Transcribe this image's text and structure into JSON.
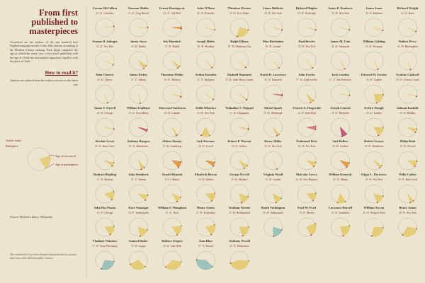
{
  "title": "From first published to masterpieces",
  "intro": "Visualized are the authors of the one hundred best English-language novels of the 20th century according to the Modern Library ranking. Each glyph compares the age at which the writer saw a first novel published with the age at which the masterpiece appeared, together with the place of birth.",
  "how_to_read": {
    "heading": "How to read it?",
    "note": "Authors are ordered from the earliest success to the latest one",
    "legend": [
      "Author name",
      "Age at first novel",
      "Age at masterpiece",
      "Birthplace"
    ]
  },
  "credit": "Source: Modern Library, Wikipedia",
  "footer": "The visualization has been designed and produced as a poster; data were collected from public sources.",
  "authors": [
    {
      "name": "Carson McCullers",
      "first": 23,
      "master": 23,
      "city": "Columbus",
      "color": "#e3c86a"
    },
    {
      "name": "Norman Mailer",
      "first": 25,
      "master": 25,
      "city": "Long Branch",
      "color": "#e3c86a"
    },
    {
      "name": "Ernest Hemingway",
      "first": 24,
      "master": 27,
      "city": "Oak Park",
      "color": "#e0903a"
    },
    {
      "name": "John O'Hara",
      "first": 29,
      "master": 29,
      "city": "Pottsville",
      "color": "#e3c86a"
    },
    {
      "name": "Theodore Dreiser",
      "first": 29,
      "master": 54,
      "city": "Terre Haute",
      "color": "#e3c86a"
    },
    {
      "name": "James Baldwin",
      "first": 29,
      "master": 29,
      "city": "New York",
      "color": "#e3c86a"
    },
    {
      "name": "Richard Hughes",
      "first": 29,
      "master": 29,
      "city": "Weybridge",
      "color": "#e3c86a"
    },
    {
      "name": "James P. Donleavy",
      "first": 29,
      "master": 29,
      "city": "New York",
      "color": "#e3c86a"
    },
    {
      "name": "James Jones",
      "first": 30,
      "master": 30,
      "city": "Robinson",
      "color": "#e3c86a"
    },
    {
      "name": "Richard Wright",
      "first": 32,
      "master": 32,
      "city": "Roxie",
      "color": "#e3c86a"
    },
    {
      "name": "Jerome D. Salinger",
      "first": 32,
      "master": 32,
      "city": "New York",
      "color": "#e3c86a"
    },
    {
      "name": "James Joyce",
      "first": 34,
      "master": 40,
      "city": "Dublin",
      "color": "#e3c86a"
    },
    {
      "name": "Iris Murdoch",
      "first": 35,
      "master": 39,
      "city": "Dublin",
      "color": "#e3c86a"
    },
    {
      "name": "Joseph Heller",
      "first": 38,
      "master": 38,
      "city": "Brooklyn",
      "color": "#e3c86a"
    },
    {
      "name": "Ralph Ellison",
      "first": 38,
      "master": 38,
      "city": "Oklahoma City",
      "color": "#e3c86a"
    },
    {
      "name": "Max Beerbohm",
      "first": 39,
      "master": 39,
      "city": "London",
      "color": "#e3c86a"
    },
    {
      "name": "Paul Bowles",
      "first": 39,
      "master": 39,
      "city": "New York",
      "color": "#e3c86a"
    },
    {
      "name": "James M. Cain",
      "first": 42,
      "master": 42,
      "city": "Annapolis",
      "color": "#e3c86a"
    },
    {
      "name": "William Golding",
      "first": 43,
      "master": 43,
      "city": "Newquay",
      "color": "#e3c86a"
    },
    {
      "name": "Walker Percy",
      "first": 45,
      "master": 45,
      "city": "Birmingham",
      "color": "#e3c86a"
    },
    {
      "name": "John Cheever",
      "first": 45,
      "master": 45,
      "city": "Quincy",
      "color": "#e3c86a"
    },
    {
      "name": "James Dickey",
      "first": 47,
      "master": 47,
      "city": "Atlanta",
      "color": "#e3c86a"
    },
    {
      "name": "Thornton Wilder",
      "first": 29,
      "master": 30,
      "city": "Madison",
      "color": "#e3c86a"
    },
    {
      "name": "Arthur Koestler",
      "first": 35,
      "master": 35,
      "city": "Budapest",
      "color": "#e3c86a"
    },
    {
      "name": "Dashiell Hammett",
      "first": 35,
      "master": 36,
      "city": "Saint Marys County",
      "color": "#e3c86a"
    },
    {
      "name": "David H. Lawrence",
      "first": 26,
      "master": 28,
      "city": "Eastwood",
      "color": "#d46a7a"
    },
    {
      "name": "John Fowles",
      "first": 37,
      "master": 43,
      "city": "Leigh-on-Sea",
      "color": "#e3c86a"
    },
    {
      "name": "Jack London",
      "first": 27,
      "master": 27,
      "city": "San Francisco",
      "color": "#e3c86a"
    },
    {
      "name": "Edward M. Forster",
      "first": 26,
      "master": 45,
      "city": "London",
      "color": "#e3c86a"
    },
    {
      "name": "Erskine Caldwell",
      "first": 29,
      "master": 29,
      "city": "Coweta County",
      "color": "#e3c86a"
    },
    {
      "name": "James T. Farrell",
      "first": 28,
      "master": 28,
      "city": "Chicago",
      "color": "#e3c86a"
    },
    {
      "name": "William Faulkner",
      "first": 29,
      "master": 32,
      "city": "New Albany",
      "color": "#c94b6a"
    },
    {
      "name": "Sherwood Anderson",
      "first": 40,
      "master": 43,
      "city": "Camden",
      "color": "#e3c86a"
    },
    {
      "name": "Edith Wharton",
      "first": 43,
      "master": 58,
      "city": "New York",
      "color": "#e3c86a"
    },
    {
      "name": "Vidiadhar S. Naipaul",
      "first": 27,
      "master": 29,
      "city": "Chaguanas",
      "color": "#e3c86a"
    },
    {
      "name": "Muriel Spark",
      "first": 39,
      "master": 43,
      "city": "Edinburgh",
      "color": "#e3c86a"
    },
    {
      "name": "Francis S. Fitzgerald",
      "first": 23,
      "master": 29,
      "city": "Saint Paul",
      "color": "#d46a7a"
    },
    {
      "name": "Joseph Conrad",
      "first": 38,
      "master": 47,
      "city": "Berdychiv",
      "color": "#b5476a"
    },
    {
      "name": "Evelyn Waugh",
      "first": 25,
      "master": 42,
      "city": "London",
      "color": "#e3c86a"
    },
    {
      "name": "Salman Rushdie",
      "first": 28,
      "master": 34,
      "city": "Bombay",
      "color": "#e3c86a"
    },
    {
      "name": "Sinclair Lewis",
      "first": 29,
      "master": 35,
      "city": "Sauk Centre",
      "color": "#e3c86a"
    },
    {
      "name": "Anthony Burgess",
      "first": 39,
      "master": 45,
      "city": "Manchester",
      "color": "#e3c86a"
    },
    {
      "name": "Aldous Huxley",
      "first": 27,
      "master": 38,
      "city": "Godalming",
      "color": "#e0903a"
    },
    {
      "name": "Jack Kerouac",
      "first": 28,
      "master": 35,
      "city": "Lowell",
      "color": "#e0903a"
    },
    {
      "name": "Robert P. Warren",
      "first": 34,
      "master": 41,
      "city": "Guthrie",
      "color": "#e3c86a"
    },
    {
      "name": "Henry Miller",
      "first": 43,
      "master": 43,
      "city": "New York",
      "color": "#e3c86a"
    },
    {
      "name": "Nathanael West",
      "first": 28,
      "master": 36,
      "city": "New York",
      "color": "#e3c86a"
    },
    {
      "name": "Saul Bellow",
      "first": 29,
      "master": 38,
      "city": "Lachine",
      "color": "#e0903a"
    },
    {
      "name": "Robert Graves",
      "first": 34,
      "master": 39,
      "city": "Wimbledon",
      "color": "#e3c86a"
    },
    {
      "name": "Philip Roth",
      "first": 26,
      "master": 36,
      "city": "Newark",
      "color": "#e3c86a"
    },
    {
      "name": "Rudyard Kipling",
      "first": 21,
      "master": 36,
      "city": "Bombay",
      "color": "#e3c86a"
    },
    {
      "name": "John Steinbeck",
      "first": 27,
      "master": 37,
      "city": "Salinas",
      "color": "#e3c86a"
    },
    {
      "name": "Arnold Bennett",
      "first": 31,
      "master": 41,
      "city": "Hanley",
      "color": "#e3c86a"
    },
    {
      "name": "Elizabeth Bowen",
      "first": 24,
      "master": 39,
      "city": "Dublin",
      "color": "#e3c86a"
    },
    {
      "name": "George Orwell",
      "first": 30,
      "master": 46,
      "city": "Motihari",
      "color": "#e3c86a"
    },
    {
      "name": "Virginia Woolf",
      "first": 33,
      "master": 45,
      "city": "London",
      "color": "#e3c86a"
    },
    {
      "name": "Malcolm Lowry",
      "first": 24,
      "master": 38,
      "city": "New Brighton",
      "color": "#e3c86a"
    },
    {
      "name": "William Kennedy",
      "first": 41,
      "master": 55,
      "city": "Albany",
      "color": "#e3c86a"
    },
    {
      "name": "Edgar L. Doctorow",
      "first": 29,
      "master": 44,
      "city": "New York",
      "color": "#e3c86a"
    },
    {
      "name": "Willa Cather",
      "first": 39,
      "master": 45,
      "city": "Back Creek",
      "color": "#e3c86a"
    },
    {
      "name": "John Dos Passos",
      "first": 24,
      "master": 40,
      "city": "Chicago",
      "color": "#e3c86a"
    },
    {
      "name": "Kurt Vonnegut",
      "first": 30,
      "master": 47,
      "city": "Indianapolis",
      "color": "#e3c86a"
    },
    {
      "name": "William S. Maugham",
      "first": 23,
      "master": 41,
      "city": "Paris",
      "color": "#e3c86a"
    },
    {
      "name": "Henry Green",
      "first": 21,
      "master": 40,
      "city": "Tewkesbury",
      "color": "#e3c86a"
    },
    {
      "name": "Graham Greene",
      "first": 25,
      "master": 44,
      "city": "Berkhamsted",
      "color": "#e3c86a"
    },
    {
      "name": "Booth Tarkington",
      "first": 30,
      "master": 49,
      "city": "Indianapolis",
      "color": "#8fbcb5"
    },
    {
      "name": "Ford M. Ford",
      "first": 19,
      "master": 42,
      "city": "Merton",
      "color": "#e3c86a"
    },
    {
      "name": "Lawrence Durrell",
      "first": 23,
      "master": 45,
      "city": "Jalandhar",
      "color": "#e3c86a"
    },
    {
      "name": "William Styron",
      "first": 26,
      "master": 54,
      "city": "Newport News",
      "color": "#e3c86a"
    },
    {
      "name": "Henry James",
      "first": 28,
      "master": 59,
      "city": "New York",
      "color": "#e3c86a"
    },
    {
      "name": "Vladimir Nabokov",
      "first": 27,
      "master": 56,
      "city": "Saint Petersburg",
      "color": "#8fbcb5"
    },
    {
      "name": "Samuel Butler",
      "first": 37,
      "master": 68,
      "city": "Langar",
      "color": "#e3c86a"
    },
    {
      "name": "Wallace Stegner",
      "first": 28,
      "master": 62,
      "city": "Lake Mills",
      "color": "#e3c86a"
    },
    {
      "name": "Jean Rhys",
      "first": 37,
      "master": 76,
      "city": "Roseau",
      "color": "#8fbcb5"
    },
    {
      "name": "Anthony Powell",
      "first": 26,
      "master": 70,
      "city": "Westminster",
      "color": "#e3c86a"
    }
  ]
}
